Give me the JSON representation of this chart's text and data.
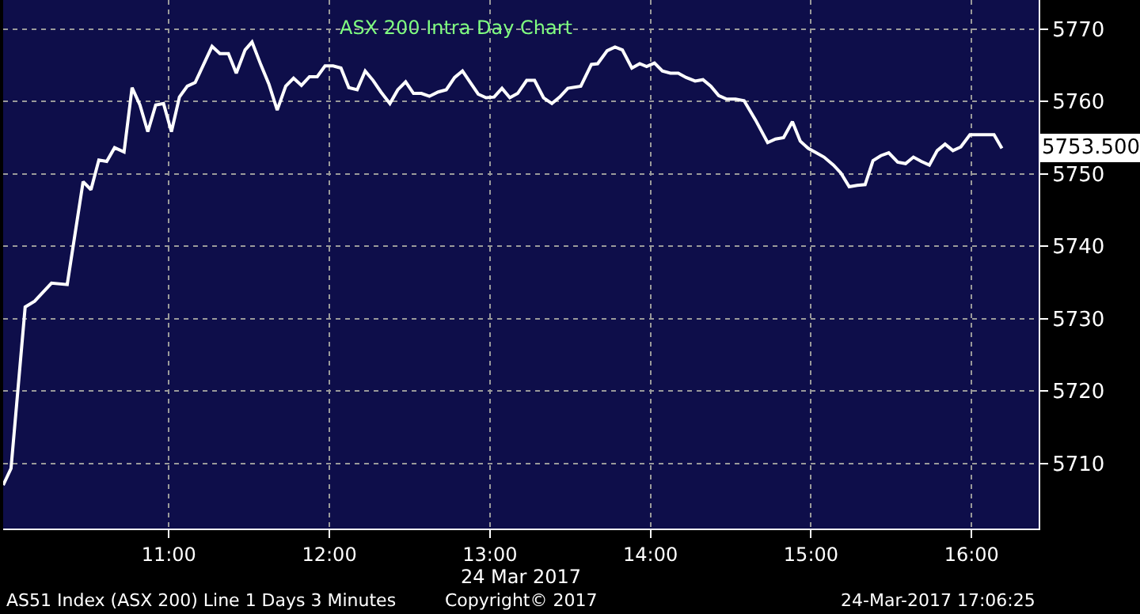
{
  "chart_data": {
    "type": "line",
    "title": "ASX 200 Intra Day Chart",
    "xlabel": "24 Mar 2017",
    "x": [
      9.968,
      10.017,
      10.105,
      10.164,
      10.269,
      10.367,
      10.466,
      10.515,
      10.564,
      10.613,
      10.662,
      10.721,
      10.771,
      10.82,
      10.869,
      10.918,
      10.967,
      11.016,
      11.066,
      11.115,
      11.164,
      11.269,
      11.318,
      11.371,
      11.42,
      11.475,
      11.518,
      11.574,
      11.623,
      11.675,
      11.728,
      11.777,
      11.826,
      11.876,
      11.924,
      11.973,
      12.023,
      12.072,
      12.121,
      12.173,
      12.223,
      12.272,
      12.321,
      12.377,
      12.426,
      12.475,
      12.524,
      12.573,
      12.623,
      12.678,
      12.728,
      12.78,
      12.829,
      12.878,
      12.927,
      12.976,
      13.026,
      13.075,
      13.124,
      13.173,
      13.229,
      13.278,
      13.334,
      13.386,
      13.435,
      13.485,
      13.566,
      13.632,
      13.671,
      13.73,
      13.779,
      13.825,
      13.884,
      13.933,
      13.976,
      14.025,
      14.074,
      14.124,
      14.173,
      14.222,
      14.278,
      14.327,
      14.376,
      14.425,
      14.475,
      14.53,
      14.583,
      14.655,
      14.73,
      14.779,
      14.829,
      14.884,
      14.933,
      14.983,
      15.032,
      15.081,
      15.14,
      15.186,
      15.238,
      15.288,
      15.337,
      15.386,
      15.435,
      15.484,
      15.54,
      15.589,
      15.638,
      15.687,
      15.737,
      15.786,
      15.835,
      15.884,
      15.933,
      15.99,
      16.039,
      16.091,
      16.14,
      16.189
    ],
    "series": [
      {
        "color": "#ffffff",
        "values": [
          5707.0,
          5709.3,
          5731.6,
          5732.4,
          5734.9,
          5734.7,
          5748.9,
          5747.8,
          5751.9,
          5751.7,
          5753.6,
          5753.0,
          5761.9,
          5759.5,
          5755.8,
          5759.5,
          5759.7,
          5755.8,
          5760.6,
          5762.1,
          5762.6,
          5767.6,
          5766.6,
          5766.6,
          5763.9,
          5767.1,
          5768.2,
          5765.0,
          5762.4,
          5758.8,
          5762.1,
          5763.2,
          5762.2,
          5763.4,
          5763.4,
          5764.9,
          5764.9,
          5764.6,
          5761.9,
          5761.6,
          5764.2,
          5762.9,
          5761.3,
          5759.7,
          5761.6,
          5762.7,
          5761.1,
          5761.1,
          5760.7,
          5761.3,
          5761.6,
          5763.3,
          5764.2,
          5762.6,
          5761.0,
          5760.5,
          5760.6,
          5761.8,
          5760.5,
          5761.1,
          5762.9,
          5762.9,
          5760.5,
          5759.7,
          5760.6,
          5761.8,
          5762.1,
          5765.1,
          5765.2,
          5767.0,
          5767.5,
          5767.1,
          5764.6,
          5765.2,
          5764.8,
          5765.3,
          5764.2,
          5763.9,
          5763.9,
          5763.3,
          5762.8,
          5763.0,
          5762.1,
          5760.8,
          5760.3,
          5760.3,
          5760.1,
          5757.4,
          5754.3,
          5754.8,
          5755.0,
          5757.2,
          5754.5,
          5753.5,
          5752.9,
          5752.3,
          5751.2,
          5750.1,
          5748.2,
          5748.4,
          5748.5,
          5751.8,
          5752.5,
          5752.9,
          5751.6,
          5751.4,
          5752.3,
          5751.7,
          5751.2,
          5753.2,
          5754.1,
          5753.2,
          5753.7,
          5755.4,
          5755.4,
          5755.4,
          5755.4,
          5753.5
        ]
      }
    ],
    "xlim": [
      9.968,
      16.418
    ],
    "ylim": [
      5701,
      5774
    ],
    "xticks": [
      {
        "value": 11,
        "label": "11:00"
      },
      {
        "value": 12,
        "label": "12:00"
      },
      {
        "value": 13,
        "label": "13:00"
      },
      {
        "value": 14,
        "label": "14:00"
      },
      {
        "value": 15,
        "label": "15:00"
      },
      {
        "value": 16,
        "label": "16:00"
      }
    ],
    "yticks": [
      5710,
      5720,
      5730,
      5740,
      5750,
      5760,
      5770
    ],
    "grid": true,
    "legend": false,
    "marker": "none",
    "line_style": "solid",
    "annotations": [
      "5753.500",
      "AS51 Index (ASX 200) Line 1 Days 3 Minutes",
      "Copyright© 2017",
      "24-Mar-2017 17:06:25"
    ]
  }
}
